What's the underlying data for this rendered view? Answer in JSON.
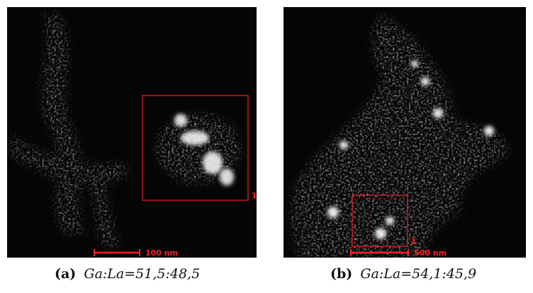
{
  "panels": [
    {
      "scale_bar": "100 nm",
      "roi_label": "1",
      "caption": {
        "tag": "(a)",
        "text": "Ga:La=51,5:48,5"
      }
    },
    {
      "scale_bar": "500 nm",
      "roi_label": "1",
      "caption": {
        "tag": "(b)",
        "text": "Ga:La=54,1:45,9"
      }
    }
  ]
}
